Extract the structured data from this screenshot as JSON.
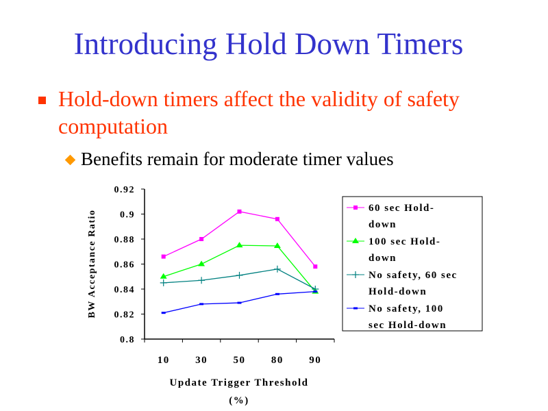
{
  "slide": {
    "title": "Introducing Hold Down Timers",
    "bullet": "Hold-down timers affect the validity of safety computation",
    "sub_bullet": "Benefits remain for moderate timer values",
    "colors": {
      "title": "#3333CC",
      "bullet": "#FF3300",
      "sub_bullet_marker": "#FF9900"
    }
  },
  "chart_data": {
    "type": "line",
    "xlabel": "Update Trigger Threshold (%)",
    "ylabel": "BW Acceptance Ratio",
    "categories": [
      "10",
      "30",
      "50",
      "80",
      "90"
    ],
    "ylim": [
      0.8,
      0.92
    ],
    "yticks": [
      "0.8",
      "0.82",
      "0.84",
      "0.86",
      "0.88",
      "0.9",
      "0.92"
    ],
    "grid": false,
    "legend_position": "right",
    "series": [
      {
        "name": "60 sec Hold-down",
        "color": "#FF00FF",
        "marker": "square",
        "values": [
          0.866,
          0.88,
          0.902,
          0.896,
          0.858
        ]
      },
      {
        "name": "100 sec Hold-down",
        "color": "#00FF00",
        "marker": "triangle",
        "values": [
          0.85,
          0.86,
          0.875,
          0.8745,
          0.838
        ]
      },
      {
        "name": "No safety, 60 sec Hold-down",
        "color": "#008080",
        "marker": "plus",
        "values": [
          0.845,
          0.847,
          0.851,
          0.856,
          0.84
        ]
      },
      {
        "name": "No safety, 100 sec Hold-down",
        "color": "#0000FF",
        "marker": "dash",
        "values": [
          0.821,
          0.828,
          0.829,
          0.836,
          0.838
        ]
      }
    ]
  }
}
